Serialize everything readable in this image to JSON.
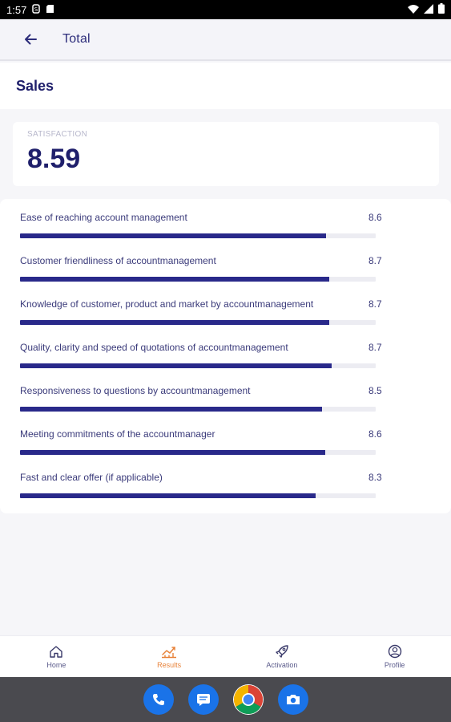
{
  "status_bar": {
    "time": "1:57"
  },
  "app_bar": {
    "title": "Total"
  },
  "section": {
    "title": "Sales"
  },
  "score": {
    "label": "SATISFACTION",
    "value": "8.59"
  },
  "metrics": [
    {
      "label": "Ease of reaching account management",
      "value": "8.6",
      "fill": 0.86
    },
    {
      "label": "Customer friendliness of accountmanagement",
      "value": "8.7",
      "fill": 0.87
    },
    {
      "label": "Knowledge of customer, product and market by accountmanagement",
      "value": "8.7",
      "fill": 0.87
    },
    {
      "label": "Quality, clarity and speed of quotations of accountmanagement",
      "value": "8.7",
      "fill": 0.875
    },
    {
      "label": "Responsiveness to questions by accountmanagement",
      "value": "8.5",
      "fill": 0.85
    },
    {
      "label": "Meeting commitments of the accountmanager",
      "value": "8.6",
      "fill": 0.857
    },
    {
      "label": "Fast and clear offer (if applicable)",
      "value": "8.3",
      "fill": 0.83
    }
  ],
  "bottom_nav": {
    "home": "Home",
    "results": "Results",
    "activation": "Activation",
    "profile": "Profile"
  },
  "colors": {
    "accent": "#29298a",
    "active_tab": "#e8833a",
    "track": "#ececf2"
  }
}
